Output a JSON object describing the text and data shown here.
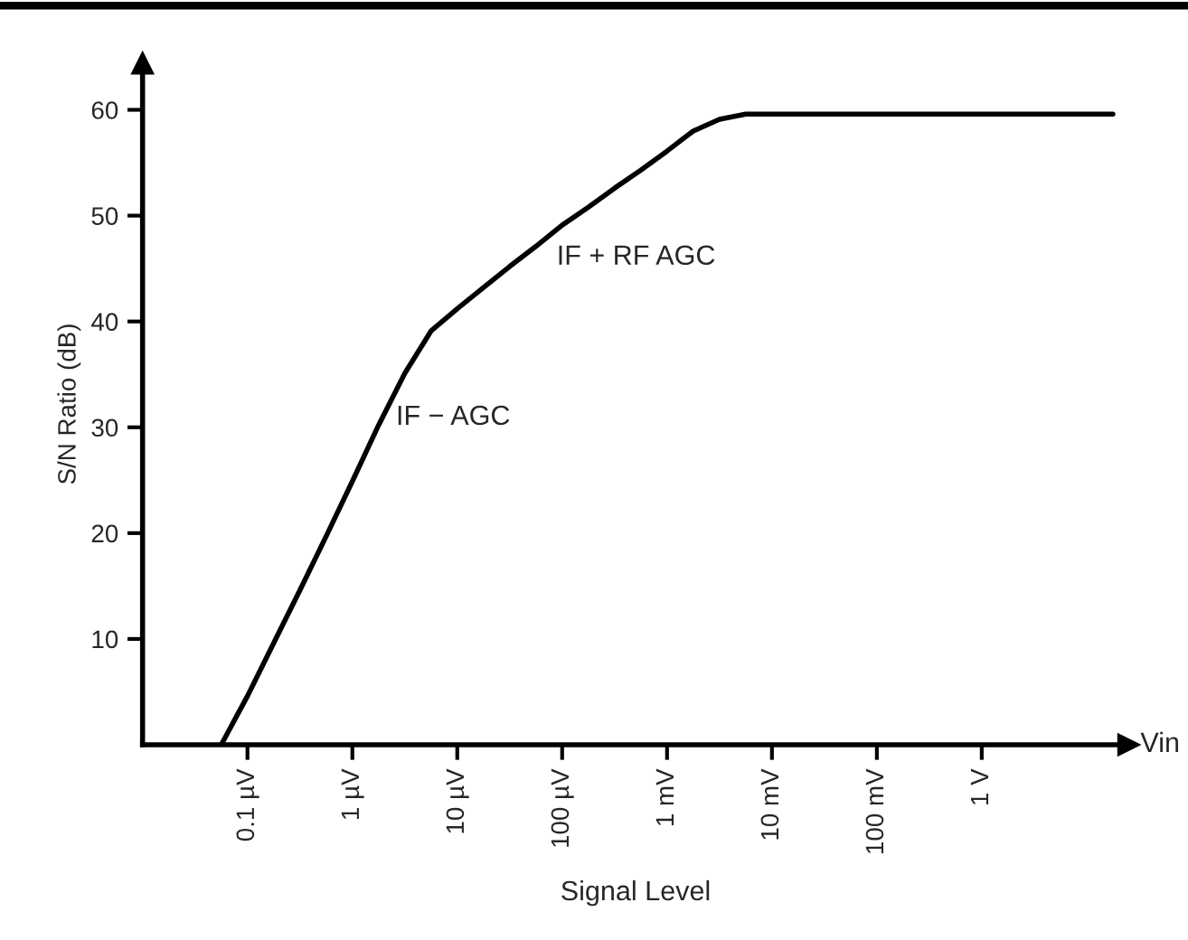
{
  "chart_data": {
    "type": "line",
    "xlabel": "Signal Level",
    "ylabel": "S/N Ratio (dB)",
    "categories": [
      null,
      "0.1 µV",
      null,
      null,
      null,
      "1 µV",
      null,
      null,
      null,
      "10 µV",
      null,
      null,
      null,
      "100 µV",
      null,
      null,
      null,
      "1 mV",
      null,
      null,
      null,
      "10 mV",
      null,
      null,
      null,
      "100 mV",
      null,
      null,
      null,
      "1 V",
      null,
      null,
      null,
      null,
      null
    ],
    "series": [
      {
        "color": "#000000",
        "values": [
          0,
          4.6,
          9.6,
          14.6,
          19.7,
          24.9,
          30.2,
          35.1,
          39.1,
          41.2,
          43.2,
          45.2,
          47.1,
          49.1,
          50.8,
          52.6,
          54.3,
          56.1,
          58.0,
          59.1,
          59.6,
          59.6,
          59.6,
          59.6,
          59.6,
          59.6,
          59.6,
          59.6,
          59.6,
          59.6,
          59.6,
          59.6,
          59.6,
          59.6,
          59.6
        ]
      }
    ],
    "ylim": [
      0,
      64.4
    ],
    "yticks": [
      10,
      20,
      30,
      40,
      50,
      60
    ],
    "annotations": [
      "IF − AGC",
      "IF + RF AGC",
      "Vin"
    ],
    "grid": false,
    "legend": false,
    "marker": "none",
    "line_style": "solid"
  }
}
